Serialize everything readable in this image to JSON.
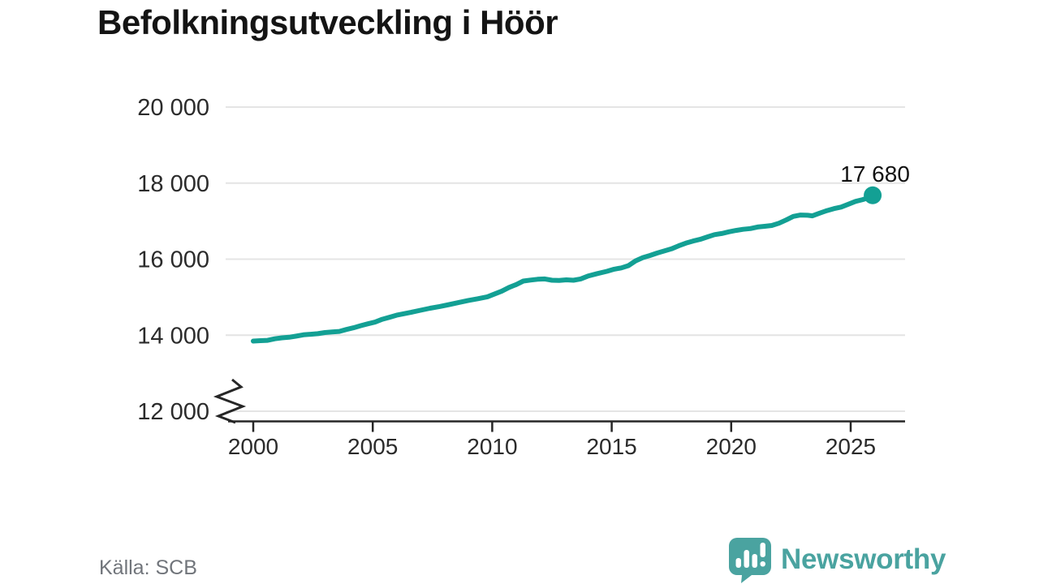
{
  "title": "Befolkningsutveckling i Höör",
  "source": "Källa: SCB",
  "branding": {
    "name": "Newsworthy"
  },
  "chart_data": {
    "type": "line",
    "title": "Befolkningsutveckling i Höör",
    "xlabel": "",
    "ylabel": "",
    "ylim": [
      12000,
      20000
    ],
    "axis_break": true,
    "grid": "horizontal",
    "legend_position": "none",
    "x_ticks": [
      2000,
      2005,
      2010,
      2015,
      2020,
      2025
    ],
    "y_ticks": [
      {
        "value": 20000,
        "label": "20 000"
      },
      {
        "value": 18000,
        "label": "18 000"
      },
      {
        "value": 16000,
        "label": "16 000"
      },
      {
        "value": 14000,
        "label": "14 000"
      },
      {
        "value": 12000,
        "label": "12 000"
      }
    ],
    "annotation": {
      "label": "17 680",
      "value": 17680
    },
    "colors": {
      "line": "#13a094",
      "grid": "#e4e4e4",
      "axis": "#262626",
      "tick_text": "#2b2b2b",
      "annotation": "#111111",
      "brand": "#4AA3A0"
    },
    "series": [
      {
        "name": "Befolkning",
        "points": [
          [
            2000.0,
            13845
          ],
          [
            2000.3,
            13855
          ],
          [
            2000.6,
            13865
          ],
          [
            2000.9,
            13905
          ],
          [
            2001.2,
            13930
          ],
          [
            2001.5,
            13945
          ],
          [
            2001.8,
            13975
          ],
          [
            2002.1,
            14010
          ],
          [
            2002.4,
            14025
          ],
          [
            2002.7,
            14040
          ],
          [
            2003.0,
            14070
          ],
          [
            2003.3,
            14085
          ],
          [
            2003.6,
            14100
          ],
          [
            2003.9,
            14150
          ],
          [
            2004.2,
            14195
          ],
          [
            2004.5,
            14250
          ],
          [
            2004.8,
            14300
          ],
          [
            2005.1,
            14345
          ],
          [
            2005.4,
            14420
          ],
          [
            2005.7,
            14470
          ],
          [
            2006.0,
            14525
          ],
          [
            2006.3,
            14565
          ],
          [
            2006.6,
            14600
          ],
          [
            2007.0,
            14655
          ],
          [
            2007.4,
            14710
          ],
          [
            2007.8,
            14755
          ],
          [
            2008.2,
            14805
          ],
          [
            2008.6,
            14860
          ],
          [
            2009.0,
            14915
          ],
          [
            2009.4,
            14960
          ],
          [
            2009.8,
            15010
          ],
          [
            2010.1,
            15085
          ],
          [
            2010.4,
            15160
          ],
          [
            2010.7,
            15255
          ],
          [
            2011.0,
            15330
          ],
          [
            2011.3,
            15425
          ],
          [
            2011.6,
            15450
          ],
          [
            2011.9,
            15470
          ],
          [
            2012.2,
            15480
          ],
          [
            2012.5,
            15445
          ],
          [
            2012.8,
            15440
          ],
          [
            2013.1,
            15455
          ],
          [
            2013.4,
            15445
          ],
          [
            2013.7,
            15480
          ],
          [
            2014.0,
            15555
          ],
          [
            2014.4,
            15620
          ],
          [
            2014.8,
            15680
          ],
          [
            2015.1,
            15735
          ],
          [
            2015.4,
            15770
          ],
          [
            2015.7,
            15830
          ],
          [
            2016.0,
            15955
          ],
          [
            2016.3,
            16040
          ],
          [
            2016.6,
            16095
          ],
          [
            2016.9,
            16160
          ],
          [
            2017.2,
            16215
          ],
          [
            2017.5,
            16270
          ],
          [
            2017.8,
            16350
          ],
          [
            2018.1,
            16420
          ],
          [
            2018.4,
            16475
          ],
          [
            2018.7,
            16520
          ],
          [
            2019.0,
            16585
          ],
          [
            2019.3,
            16645
          ],
          [
            2019.6,
            16675
          ],
          [
            2019.9,
            16720
          ],
          [
            2020.2,
            16755
          ],
          [
            2020.5,
            16785
          ],
          [
            2020.8,
            16805
          ],
          [
            2021.1,
            16845
          ],
          [
            2021.4,
            16865
          ],
          [
            2021.7,
            16885
          ],
          [
            2022.0,
            16945
          ],
          [
            2022.3,
            17030
          ],
          [
            2022.6,
            17125
          ],
          [
            2022.9,
            17160
          ],
          [
            2023.2,
            17155
          ],
          [
            2023.4,
            17140
          ],
          [
            2023.7,
            17210
          ],
          [
            2024.0,
            17275
          ],
          [
            2024.3,
            17330
          ],
          [
            2024.6,
            17370
          ],
          [
            2024.9,
            17445
          ],
          [
            2025.2,
            17520
          ],
          [
            2025.5,
            17565
          ],
          [
            2025.7,
            17605
          ],
          [
            2025.92,
            17680
          ]
        ]
      }
    ]
  }
}
